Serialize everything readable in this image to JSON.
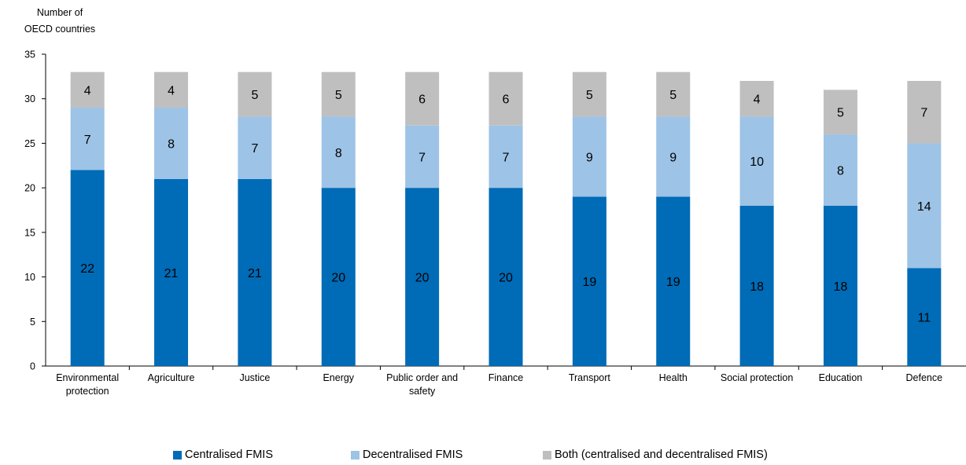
{
  "chart_data": {
    "type": "bar",
    "stacked": true,
    "title": "",
    "xlabel": "",
    "ylabel": "Number of OECD countries",
    "ylabel_lines": [
      "Number of",
      "OECD countries"
    ],
    "ylim": [
      0,
      35
    ],
    "yticks": [
      0,
      5,
      10,
      15,
      20,
      25,
      30,
      35
    ],
    "grid": false,
    "legend_position": "bottom",
    "categories": [
      "Environmental protection",
      "Agriculture",
      "Justice",
      "Energy",
      "Public order and safety",
      "Finance",
      "Transport",
      "Health",
      "Social protection",
      "Education",
      "Defence"
    ],
    "category_label_lines": [
      [
        "Environmental",
        "protection"
      ],
      [
        "Agriculture"
      ],
      [
        "Justice"
      ],
      [
        "Energy"
      ],
      [
        "Public order and",
        "safety"
      ],
      [
        "Finance"
      ],
      [
        "Transport"
      ],
      [
        "Health"
      ],
      [
        "Social protection"
      ],
      [
        "Education"
      ],
      [
        "Defence"
      ]
    ],
    "series": [
      {
        "name": "Centralised FMIS",
        "color": "#006BB6",
        "values": [
          22,
          21,
          21,
          20,
          20,
          20,
          19,
          19,
          18,
          18,
          11
        ]
      },
      {
        "name": "Decentralised FMIS",
        "color": "#9DC3E6",
        "values": [
          7,
          8,
          7,
          8,
          7,
          7,
          9,
          9,
          10,
          8,
          14
        ]
      },
      {
        "name": "Both (centralised and decentralised FMIS)",
        "color": "#BFBFBF",
        "values": [
          4,
          4,
          5,
          5,
          6,
          6,
          5,
          5,
          4,
          5,
          7
        ]
      }
    ]
  }
}
